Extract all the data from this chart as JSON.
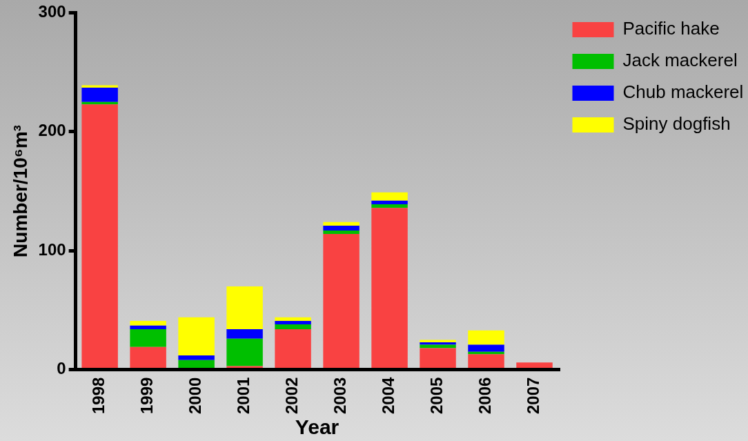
{
  "chart_data": {
    "type": "bar",
    "stacked": true,
    "xlabel": "Year",
    "ylabel": "Number/10⁶m³",
    "categories": [
      "1998",
      "1999",
      "2000",
      "2001",
      "2002",
      "2003",
      "2004",
      "2005",
      "2006",
      "2007"
    ],
    "series": [
      {
        "name": "Pacific hake",
        "color": "#f94242",
        "values": [
          223,
          19,
          0,
          3,
          34,
          114,
          136,
          18,
          13,
          6
        ]
      },
      {
        "name": "Jack mackerel",
        "color": "#00bf00",
        "values": [
          2,
          15,
          8,
          23,
          4,
          3,
          3,
          3,
          2,
          0
        ]
      },
      {
        "name": "Chub mackerel",
        "color": "#0000ff",
        "values": [
          12,
          3,
          4,
          8,
          3,
          4,
          3,
          2,
          6,
          0
        ]
      },
      {
        "name": "Spiny dogfish",
        "color": "#ffff00",
        "values": [
          2,
          4,
          32,
          36,
          3,
          3,
          7,
          2,
          12,
          0
        ]
      }
    ],
    "ylim": [
      0,
      300
    ],
    "yticks": [
      0,
      100,
      200,
      300
    ],
    "grid": false,
    "legend": "right"
  }
}
